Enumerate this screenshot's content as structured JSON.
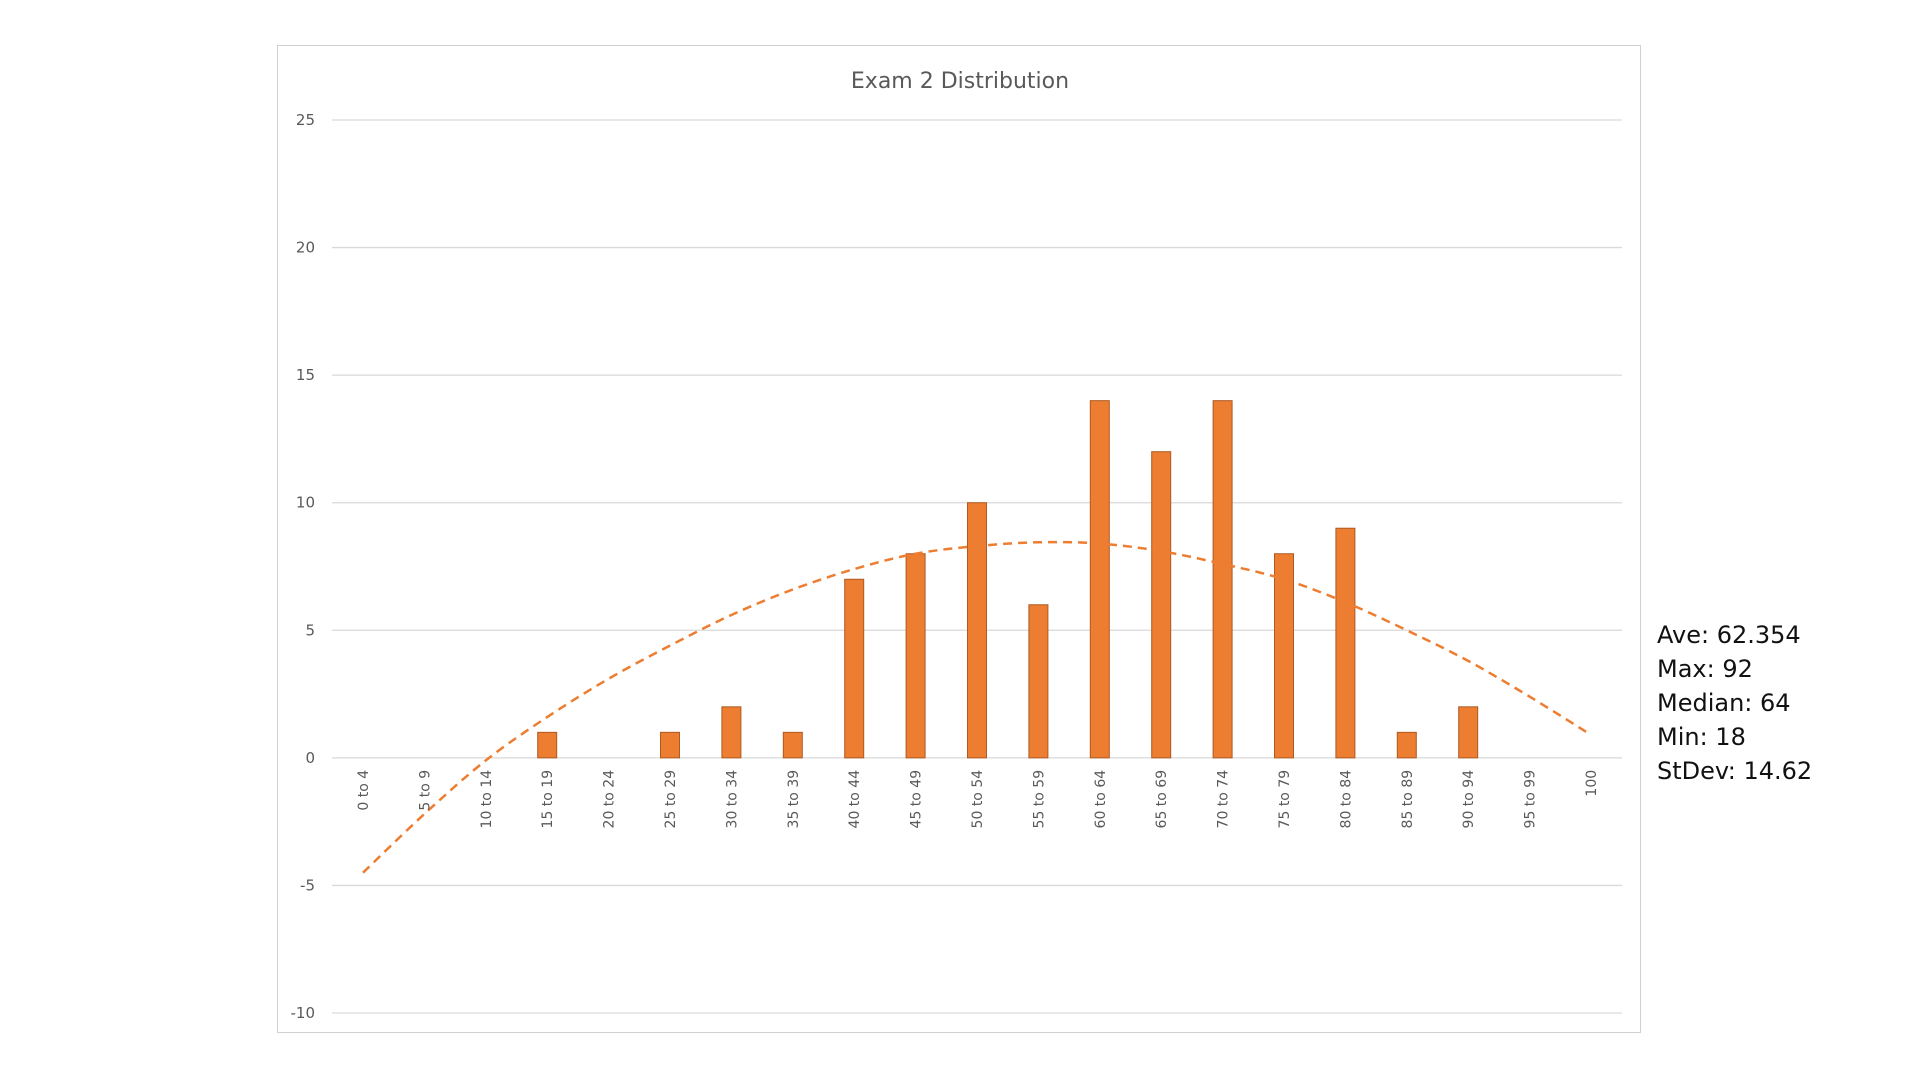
{
  "chart_data": {
    "type": "bar",
    "title": "Exam 2 Distribution",
    "xlabel": "",
    "ylabel": "",
    "categories": [
      "0 to 4",
      "5 to 9",
      "10 to 14",
      "15 to 19",
      "20 to 24",
      "25 to 29",
      "30 to 34",
      "35 to 39",
      "40 to 44",
      "45 to 49",
      "50 to 54",
      "55 to 59",
      "60 to 64",
      "65 to 69",
      "70 to 74",
      "75 to 79",
      "80 to 84",
      "85 to 89",
      "90 to 94",
      "95 to 99",
      "100"
    ],
    "series": [
      {
        "values": [
          0,
          0,
          0,
          1,
          0,
          1,
          2,
          1,
          7,
          8,
          10,
          6,
          14,
          12,
          14,
          8,
          9,
          1,
          2,
          0,
          0
        ]
      },
      {
        "type": "polynomial trendline",
        "style": "dashed",
        "values": [
          -4.5,
          -2.2,
          -0.1,
          1.6,
          3.1,
          4.4,
          5.6,
          6.6,
          7.4,
          8.0,
          8.3,
          8.45,
          8.4,
          8.1,
          7.6,
          7.0,
          6.1,
          5.0,
          3.8,
          2.4,
          0.9
        ]
      }
    ],
    "ylim": [
      -10,
      25
    ],
    "yticks": [
      -10,
      -5,
      0,
      5,
      10,
      15,
      20,
      25
    ],
    "grid": true,
    "legend": "none",
    "colors": {
      "bar": "#ED7D31",
      "bar_border": "#AE5A21",
      "trend": "#ED7D31",
      "grid": "#d9d9d9",
      "text": "#595959"
    }
  },
  "stats": {
    "lines": [
      "Ave: 62.354",
      "Max: 92",
      "Median: 64",
      "Min: 18",
      "StDev: 14.62"
    ]
  }
}
